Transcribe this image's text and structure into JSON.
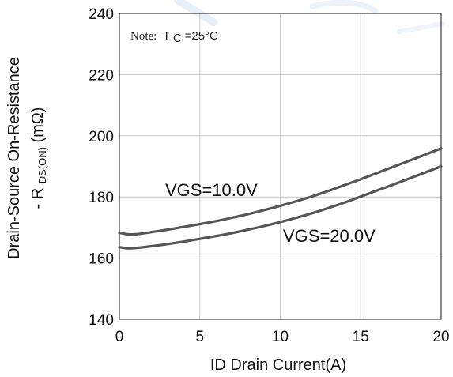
{
  "chart_data": {
    "type": "line",
    "xlabel": "ID Drain Current(A)",
    "ylabel_line1": "Drain-Source On-Resistance",
    "ylabel_line2_prefix": "- R",
    "ylabel_line2_sub": "DS(ON)",
    "ylabel_line2_suffix": "(mΩ)",
    "xlim": [
      0,
      20
    ],
    "ylim": [
      140,
      240
    ],
    "xticks": [
      0,
      5,
      10,
      15,
      20
    ],
    "yticks": [
      140,
      160,
      180,
      200,
      220,
      240
    ],
    "grid": true,
    "note": {
      "prefix": "Note:",
      "symbol": "T",
      "sub": "C",
      "value": "=25°C"
    },
    "series": [
      {
        "name": "VGS=10.0V",
        "color": "#555555",
        "points": [
          [
            0,
            168.3
          ],
          [
            0.5,
            167.8
          ],
          [
            1,
            167.8
          ],
          [
            2,
            168.5
          ],
          [
            3,
            169.3
          ],
          [
            4,
            170.2
          ],
          [
            5,
            171.1
          ],
          [
            6,
            172.1
          ],
          [
            7,
            173.2
          ],
          [
            8,
            174.4
          ],
          [
            9,
            175.7
          ],
          [
            10,
            177.1
          ],
          [
            11,
            178.6
          ],
          [
            12,
            180.2
          ],
          [
            13,
            182.0
          ],
          [
            14,
            183.9
          ],
          [
            15,
            185.8
          ],
          [
            16,
            187.8
          ],
          [
            17,
            189.8
          ],
          [
            18,
            191.8
          ],
          [
            19,
            193.8
          ],
          [
            20,
            195.9
          ]
        ]
      },
      {
        "name": "VGS=20.0V",
        "color": "#555555",
        "points": [
          [
            0,
            163.6
          ],
          [
            0.5,
            163.2
          ],
          [
            1,
            163.3
          ],
          [
            2,
            163.9
          ],
          [
            3,
            164.6
          ],
          [
            4,
            165.4
          ],
          [
            5,
            166.3
          ],
          [
            6,
            167.2
          ],
          [
            7,
            168.2
          ],
          [
            8,
            169.3
          ],
          [
            9,
            170.5
          ],
          [
            10,
            171.8
          ],
          [
            11,
            173.2
          ],
          [
            12,
            174.7
          ],
          [
            13,
            176.4
          ],
          [
            14,
            178.2
          ],
          [
            15,
            180.1
          ],
          [
            16,
            182.1
          ],
          [
            17,
            184.0
          ],
          [
            18,
            186.0
          ],
          [
            19,
            188.0
          ],
          [
            20,
            190.0
          ]
        ]
      }
    ]
  }
}
